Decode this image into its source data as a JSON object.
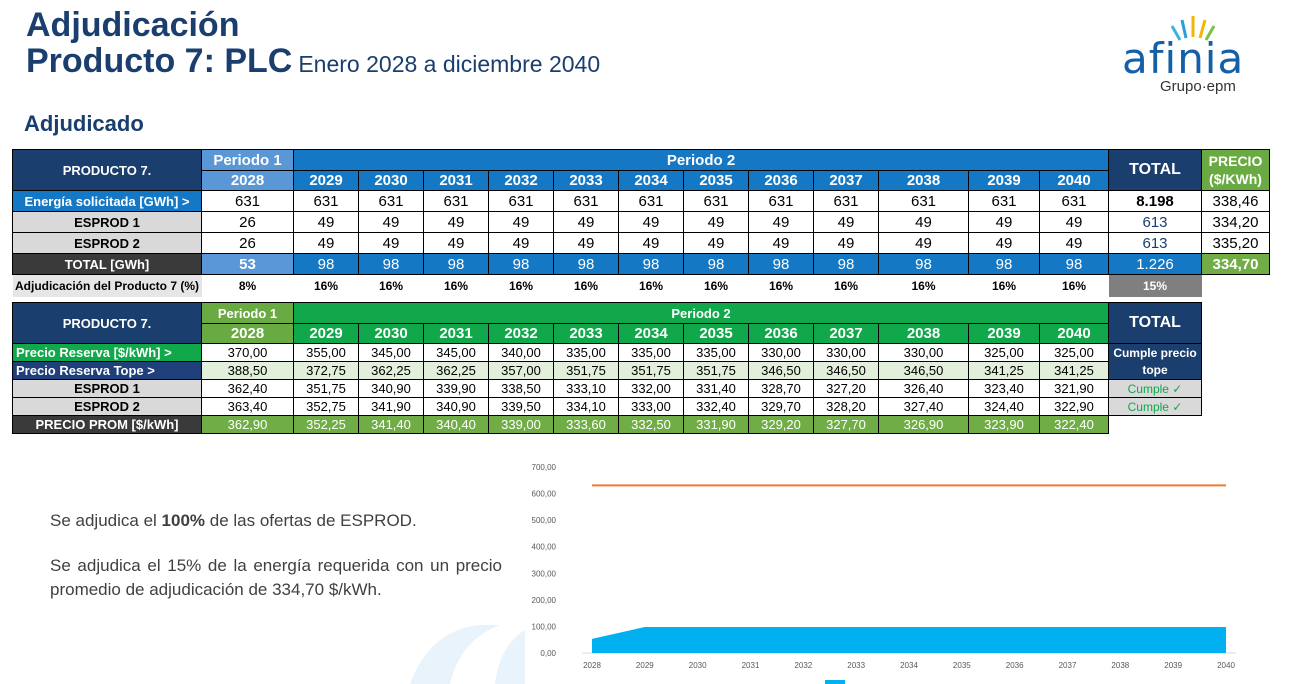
{
  "header": {
    "title_line1": "Adjudicación",
    "title_line2": "Producto 7: PLC",
    "period": "Enero 2028 a diciembre 2040",
    "section": "Adjudicado"
  },
  "logo": {
    "name": "afinia",
    "sub": "Grupo·epm"
  },
  "table1": {
    "corner": "PRODUCTO 7.",
    "period1": "Periodo 1",
    "period2": "Periodo 2",
    "total_header": "TOTAL",
    "precio_header": "PRECIO ($/KWh)",
    "years": [
      "2028",
      "2029",
      "2030",
      "2031",
      "2032",
      "2033",
      "2034",
      "2035",
      "2036",
      "2037",
      "2038",
      "2039",
      "2040"
    ],
    "rows": [
      {
        "label": "Energía solicitada [GWh] >",
        "values": [
          "631",
          "631",
          "631",
          "631",
          "631",
          "631",
          "631",
          "631",
          "631",
          "631",
          "631",
          "631",
          "631"
        ],
        "total": "8.198",
        "precio": "338,46"
      },
      {
        "label": "ESPROD 1",
        "values": [
          "26",
          "49",
          "49",
          "49",
          "49",
          "49",
          "49",
          "49",
          "49",
          "49",
          "49",
          "49",
          "49"
        ],
        "total": "613",
        "precio": "334,20"
      },
      {
        "label": "ESPROD 2",
        "values": [
          "26",
          "49",
          "49",
          "49",
          "49",
          "49",
          "49",
          "49",
          "49",
          "49",
          "49",
          "49",
          "49"
        ],
        "total": "613",
        "precio": "335,20"
      },
      {
        "label": "TOTAL [GWh]",
        "values": [
          "53",
          "98",
          "98",
          "98",
          "98",
          "98",
          "98",
          "98",
          "98",
          "98",
          "98",
          "98",
          "98"
        ],
        "total": "1.226",
        "precio": "334,70"
      }
    ],
    "pct_row": {
      "label": "Adjudicación del Producto 7 (%)",
      "values": [
        "8%",
        "16%",
        "16%",
        "16%",
        "16%",
        "16%",
        "16%",
        "16%",
        "16%",
        "16%",
        "16%",
        "16%",
        "16%"
      ],
      "total": "15%"
    }
  },
  "table2": {
    "corner": "PRODUCTO 7.",
    "period1": "Periodo 1",
    "period2": "Periodo 2",
    "total_header": "TOTAL",
    "years": [
      "2028",
      "2029",
      "2030",
      "2031",
      "2032",
      "2033",
      "2034",
      "2035",
      "2036",
      "2037",
      "2038",
      "2039",
      "2040"
    ],
    "rows": [
      {
        "label": "Precio Reserva [$/kWh] >",
        "values": [
          "370,00",
          "355,00",
          "345,00",
          "345,00",
          "340,00",
          "335,00",
          "335,00",
          "335,00",
          "330,00",
          "330,00",
          "330,00",
          "325,00",
          "325,00"
        ],
        "total": "Cumple precio tope"
      },
      {
        "label": "Precio Reserva Tope >",
        "values": [
          "388,50",
          "372,75",
          "362,25",
          "362,25",
          "357,00",
          "351,75",
          "351,75",
          "351,75",
          "346,50",
          "346,50",
          "346,50",
          "341,25",
          "341,25"
        ],
        "total": ""
      },
      {
        "label": "ESPROD 1",
        "values": [
          "362,40",
          "351,75",
          "340,90",
          "339,90",
          "338,50",
          "333,10",
          "332,00",
          "331,40",
          "328,70",
          "327,20",
          "326,40",
          "323,40",
          "321,90"
        ],
        "total": "Cumple ✓"
      },
      {
        "label": "ESPROD 2",
        "values": [
          "363,40",
          "352,75",
          "341,90",
          "340,90",
          "339,50",
          "334,10",
          "333,00",
          "332,40",
          "329,70",
          "328,20",
          "327,40",
          "324,40",
          "322,90"
        ],
        "total": "Cumple ✓"
      },
      {
        "label": "PRECIO PROM [$/kWh]",
        "values": [
          "362,90",
          "352,25",
          "341,40",
          "340,40",
          "339,00",
          "333,60",
          "332,50",
          "331,90",
          "329,20",
          "327,70",
          "326,90",
          "323,90",
          "322,40"
        ],
        "total": ""
      }
    ]
  },
  "text": {
    "p1_pre": "Se adjudica el ",
    "p1_bold": "100%",
    "p1_post": " de las ofertas de ESPROD.",
    "p2": "Se adjudica el 15% de la energía requerida con un precio promedio de adjudicación de 334,70 $/kWh."
  },
  "chart_data": {
    "type": "area",
    "x": [
      "2028",
      "2029",
      "2030",
      "2031",
      "2032",
      "2033",
      "2034",
      "2035",
      "2036",
      "2037",
      "2038",
      "2039",
      "2040"
    ],
    "yticks": [
      "0,00",
      "100,00",
      "200,00",
      "300,00",
      "400,00",
      "500,00",
      "600,00",
      "700,00"
    ],
    "ylim": [
      0,
      700
    ],
    "series": [
      {
        "kind": "line",
        "values": [
          631,
          631,
          631,
          631,
          631,
          631,
          631,
          631,
          631,
          631,
          631,
          631,
          631
        ],
        "color": "#ed7d31"
      },
      {
        "kind": "area",
        "values": [
          53,
          98,
          98,
          98,
          98,
          98,
          98,
          98,
          98,
          98,
          98,
          98,
          98
        ],
        "color": "#00b0f0"
      }
    ]
  }
}
